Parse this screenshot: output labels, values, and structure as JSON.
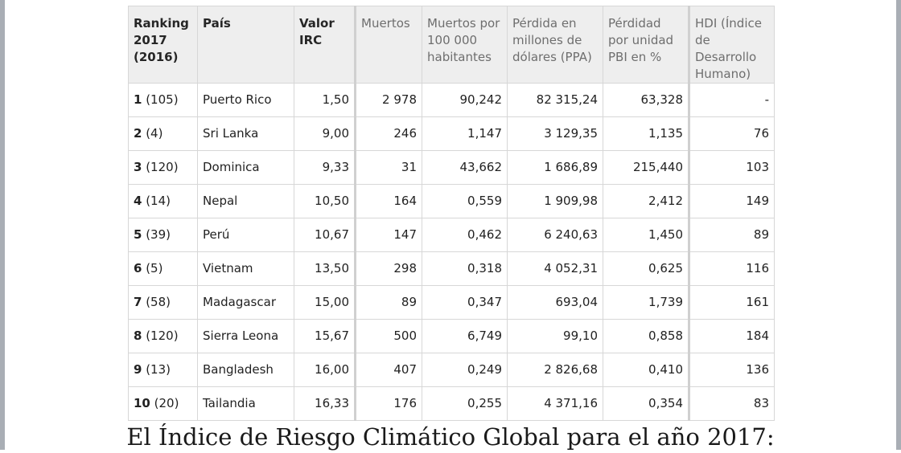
{
  "table": {
    "headers": [
      "Ranking 2017 (2016)",
      "País",
      "Valor IRC",
      "Muertos",
      "Muertos por 100 000 habitantes",
      "Pérdida en millones de dólares (PPA)",
      "Pérdidad por unidad PBI en %",
      "HDI (Índice de Desarrollo Humano)"
    ],
    "rows": [
      {
        "rank": "1",
        "prev": " (105)",
        "country": "Puerto Rico",
        "irc": "1,50",
        "deaths": "2 978",
        "deaths_per_100k": "90,242",
        "loss_ppp": "82 315,24",
        "loss_gdp_pct": "63,328",
        "hdi": "-"
      },
      {
        "rank": "2",
        "prev": " (4)",
        "country": "Sri Lanka",
        "irc": "9,00",
        "deaths": "246",
        "deaths_per_100k": "1,147",
        "loss_ppp": "3 129,35",
        "loss_gdp_pct": "1,135",
        "hdi": "76"
      },
      {
        "rank": "3",
        "prev": " (120)",
        "country": "Dominica",
        "irc": "9,33",
        "deaths": "31",
        "deaths_per_100k": "43,662",
        "loss_ppp": "1 686,89",
        "loss_gdp_pct": "215,440",
        "hdi": "103"
      },
      {
        "rank": "4",
        "prev": " (14)",
        "country": "Nepal",
        "irc": "10,50",
        "deaths": "164",
        "deaths_per_100k": "0,559",
        "loss_ppp": "1 909,98",
        "loss_gdp_pct": "2,412",
        "hdi": "149"
      },
      {
        "rank": "5",
        "prev": " (39)",
        "country": "Perú",
        "irc": "10,67",
        "deaths": "147",
        "deaths_per_100k": "0,462",
        "loss_ppp": "6 240,63",
        "loss_gdp_pct": "1,450",
        "hdi": "89"
      },
      {
        "rank": "6",
        "prev": " (5)",
        "country": "Vietnam",
        "irc": "13,50",
        "deaths": "298",
        "deaths_per_100k": "0,318",
        "loss_ppp": "4 052,31",
        "loss_gdp_pct": "0,625",
        "hdi": "116"
      },
      {
        "rank": "7",
        "prev": " (58)",
        "country": "Madagascar",
        "irc": "15,00",
        "deaths": "89",
        "deaths_per_100k": "0,347",
        "loss_ppp": "693,04",
        "loss_gdp_pct": "1,739",
        "hdi": "161"
      },
      {
        "rank": "8",
        "prev": " (120)",
        "country": "Sierra Leona",
        "irc": "15,67",
        "deaths": "500",
        "deaths_per_100k": "6,749",
        "loss_ppp": "99,10",
        "loss_gdp_pct": "0,858",
        "hdi": "184"
      },
      {
        "rank": "9",
        "prev": " (13)",
        "country": "Bangladesh",
        "irc": "16,00",
        "deaths": "407",
        "deaths_per_100k": "0,249",
        "loss_ppp": "2 826,68",
        "loss_gdp_pct": "0,410",
        "hdi": "136"
      },
      {
        "rank": "10",
        "prev": " (20)",
        "country": "Tailandia",
        "irc": "16,33",
        "deaths": "176",
        "deaths_per_100k": "0,255",
        "loss_ppp": "4 371,16",
        "loss_gdp_pct": "0,354",
        "hdi": "83"
      }
    ]
  },
  "caption": "El Índice de Riesgo Climático Global para el año 2017:"
}
